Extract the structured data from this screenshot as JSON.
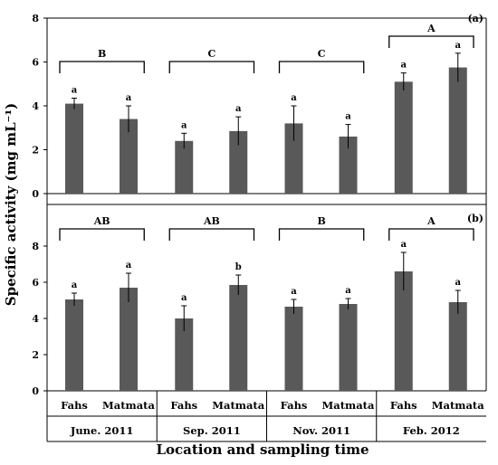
{
  "chart_data": {
    "type": "bar",
    "ylabel": "Specific activity (mg mL⁻¹)",
    "xlabel": "Location and sampling time",
    "x_categories": [
      "Fahs",
      "Matmata",
      "Fahs",
      "Matmata",
      "Fahs",
      "Matmata",
      "Fahs",
      "Matmata"
    ],
    "x_groups": [
      "June. 2011",
      "Sep. 2011",
      "Nov. 2011",
      "Feb. 2012"
    ],
    "panels": [
      {
        "label": "(a)",
        "ylim": [
          0,
          8
        ],
        "yticks": [
          0,
          2,
          4,
          6,
          8
        ],
        "values": [
          4.1,
          3.4,
          2.4,
          2.85,
          3.2,
          2.6,
          5.1,
          5.75
        ],
        "errors": [
          0.25,
          0.6,
          0.35,
          0.65,
          0.8,
          0.55,
          0.4,
          0.65
        ],
        "bar_letters": [
          "a",
          "a",
          "a",
          "a",
          "a",
          "a",
          "a",
          "a"
        ],
        "group_letters": [
          "B",
          "C",
          "C",
          "A"
        ]
      },
      {
        "label": "(b)",
        "ylim": [
          0,
          10
        ],
        "yticks": [
          0,
          2,
          4,
          6,
          8
        ],
        "values": [
          5.05,
          5.7,
          4.0,
          5.85,
          4.65,
          4.8,
          6.6,
          4.9
        ],
        "errors": [
          0.35,
          0.8,
          0.7,
          0.55,
          0.4,
          0.3,
          1.05,
          0.65
        ],
        "bar_letters": [
          "a",
          "a",
          "a",
          "b",
          "a",
          "a",
          "a",
          "a"
        ],
        "group_letters": [
          "AB",
          "AB",
          "B",
          "A"
        ]
      }
    ]
  }
}
